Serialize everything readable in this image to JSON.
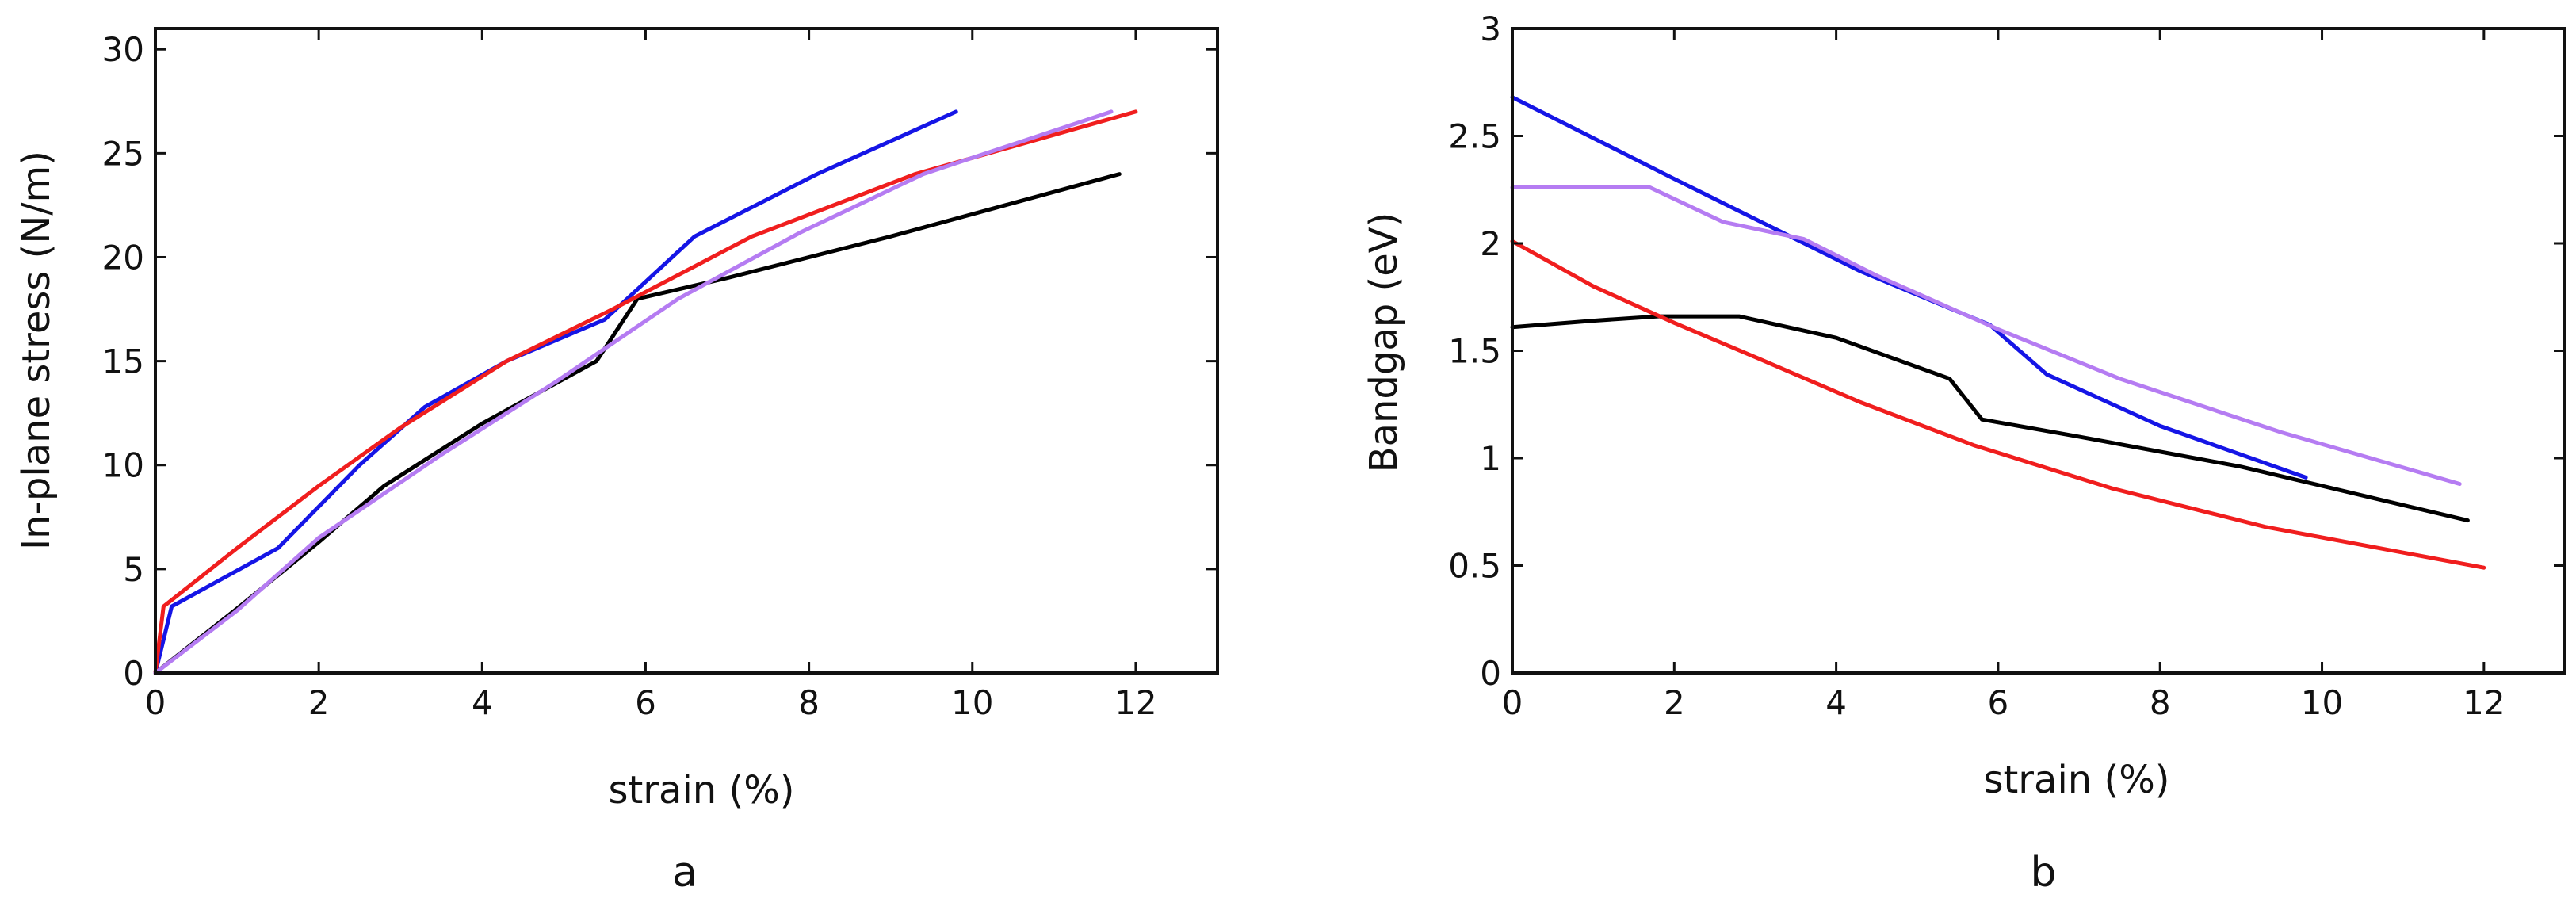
{
  "chart_data": [
    {
      "id": "a",
      "type": "line",
      "panel_label": "a",
      "title": "",
      "xlabel": "strain (%)",
      "ylabel": "In-plane stress (N/m)",
      "xlim": [
        0,
        13
      ],
      "ylim": [
        0,
        31
      ],
      "xticks": [
        0,
        2,
        4,
        6,
        8,
        10,
        12
      ],
      "yticks": [
        0,
        5,
        10,
        15,
        20,
        25,
        30
      ],
      "grid": false,
      "legend": "none",
      "series": [
        {
          "name": "black",
          "color": "#000000",
          "x": [
            0,
            1,
            2,
            2.8,
            4,
            5.4,
            5.9,
            7,
            9,
            11.8
          ],
          "y": [
            0,
            3.1,
            6.3,
            9,
            12,
            15,
            18,
            19,
            21,
            24
          ]
        },
        {
          "name": "blue",
          "color": "#1515e6",
          "x": [
            0,
            0.2,
            1.5,
            2.5,
            3.3,
            4.3,
            5.5,
            6.6,
            8.1,
            9.8
          ],
          "y": [
            0,
            3.2,
            6,
            10,
            12.8,
            15,
            17,
            21,
            24,
            27
          ]
        },
        {
          "name": "red",
          "color": "#f01e1e",
          "x": [
            0,
            0.1,
            1,
            2,
            3,
            4.3,
            5.6,
            7.3,
            9.3,
            12
          ],
          "y": [
            0,
            3.2,
            6,
            9,
            11.8,
            15,
            17.5,
            21,
            24,
            27
          ]
        },
        {
          "name": "violet",
          "color": "#b57cf2",
          "x": [
            0,
            1,
            2,
            3.5,
            4.9,
            6.4,
            7.9,
            9.4,
            11.7
          ],
          "y": [
            0,
            3,
            6.5,
            10.5,
            14,
            18,
            21.2,
            24,
            27
          ]
        }
      ]
    },
    {
      "id": "b",
      "type": "line",
      "panel_label": "b",
      "title": "",
      "xlabel": "strain (%)",
      "ylabel": "Bandgap (eV)",
      "xlim": [
        0,
        13
      ],
      "ylim": [
        0,
        3
      ],
      "xticks": [
        0,
        2,
        4,
        6,
        8,
        10,
        12
      ],
      "yticks": [
        0,
        0.5,
        1,
        1.5,
        2,
        2.5,
        3
      ],
      "grid": false,
      "legend": "none",
      "series": [
        {
          "name": "black",
          "color": "#000000",
          "x": [
            0,
            1,
            1.8,
            2.8,
            4,
            5.4,
            5.8,
            7,
            9,
            11.8
          ],
          "y": [
            1.61,
            1.64,
            1.66,
            1.66,
            1.56,
            1.37,
            1.18,
            1.1,
            0.96,
            0.71
          ]
        },
        {
          "name": "blue",
          "color": "#1515e6",
          "x": [
            0,
            2,
            4.3,
            5.9,
            6.6,
            8,
            9.8
          ],
          "y": [
            2.68,
            2.3,
            1.87,
            1.62,
            1.39,
            1.15,
            0.91
          ]
        },
        {
          "name": "red",
          "color": "#f01e1e",
          "x": [
            0,
            1,
            2,
            3,
            4.3,
            5.7,
            7.4,
            9.3,
            12
          ],
          "y": [
            2.01,
            1.8,
            1.63,
            1.47,
            1.26,
            1.06,
            0.86,
            0.68,
            0.49
          ]
        },
        {
          "name": "violet",
          "color": "#b57cf2",
          "x": [
            0,
            1.7,
            2.6,
            3.6,
            4.5,
            6,
            7.5,
            9.5,
            11.7
          ],
          "y": [
            2.26,
            2.26,
            2.1,
            2.02,
            1.85,
            1.6,
            1.37,
            1.12,
            0.88
          ]
        }
      ]
    }
  ]
}
